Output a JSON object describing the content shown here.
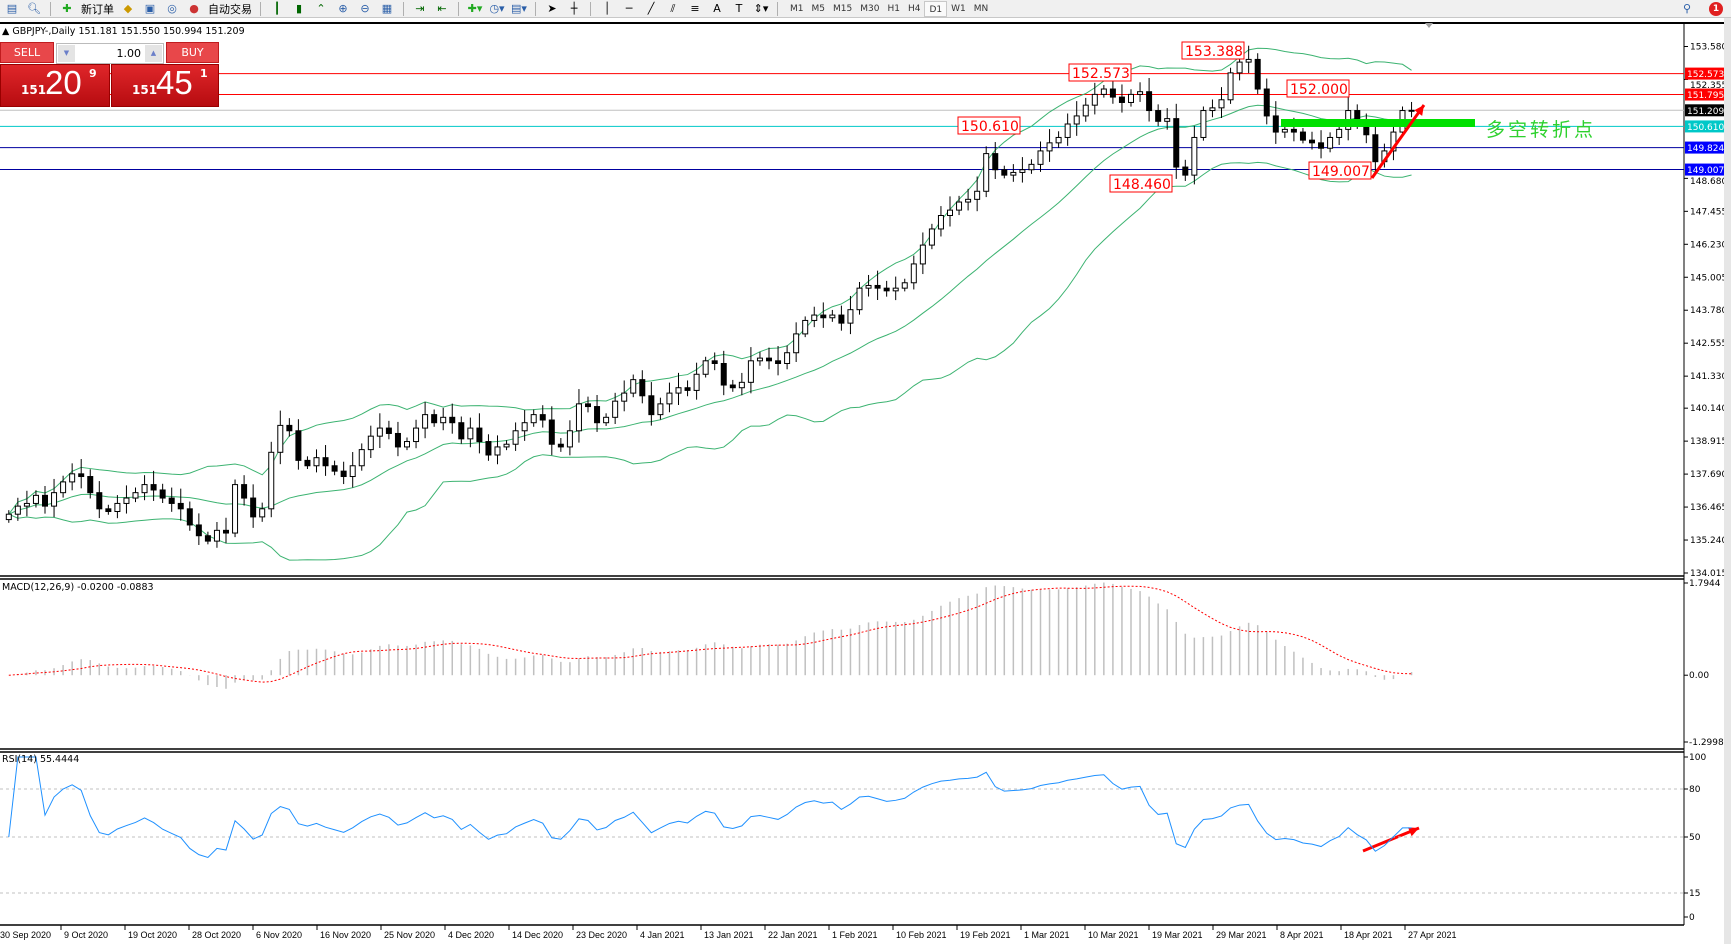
{
  "toolbar": {
    "new_order": "新订单",
    "auto_trading": "自动交易",
    "timeframes": [
      "M1",
      "M5",
      "M15",
      "M30",
      "H1",
      "H4",
      "D1",
      "W1",
      "MN"
    ],
    "active_timeframe": "D1",
    "notification_count": "1"
  },
  "chart": {
    "title": "GBPJPY-,Daily  151.181 151.550 150.994 151.209",
    "one_click": {
      "sell_label": "SELL",
      "buy_label": "BUY",
      "lots": "1.00",
      "sell_big": "151",
      "sell_main": "20",
      "sell_sup": "9",
      "buy_big": "151",
      "buy_main": "45",
      "buy_sup": "1"
    },
    "price_ticks": [
      "153.580",
      "152.355",
      "148.680",
      "147.455",
      "146.230",
      "145.005",
      "143.780",
      "142.555",
      "141.330",
      "140.140",
      "138.915",
      "137.690",
      "136.465",
      "135.240",
      "134.015"
    ],
    "price_lines": [
      {
        "value": "152.573",
        "color": "#ff0000",
        "text_color": "#ffffff"
      },
      {
        "value": "151.795",
        "color": "#ff0000",
        "text_color": "#ffffff"
      },
      {
        "value": "151.209",
        "color": "#c0c0c0",
        "label_bg": "#000000",
        "text_color": "#ffffff"
      },
      {
        "value": "150.610",
        "color": "#00c8c8",
        "text_color": "#ffffff"
      },
      {
        "value": "149.824",
        "color": "#0000a0",
        "label_bg": "#0000ff",
        "text_color": "#ffffff"
      },
      {
        "value": "149.007",
        "color": "#0000a0",
        "label_bg": "#0000ff",
        "text_color": "#ffffff"
      }
    ],
    "annotations": [
      "153.388",
      "152.573",
      "152.000",
      "150.610",
      "148.460",
      "149.007"
    ],
    "pivot_label": "多空转折点",
    "colors": {
      "bands": "#3cb371",
      "pivot": "#00e000",
      "arrow": "#ff0000",
      "annotation": "#ff0000"
    }
  },
  "macd": {
    "title": "MACD(12,26,9) -0.0200 -0.0883",
    "ticks": [
      "1.7944",
      "0.00",
      "-1.2998"
    ]
  },
  "rsi": {
    "title": "RSI(14) 55.4444",
    "ticks": [
      "100",
      "80",
      "50",
      "15",
      "0"
    ]
  },
  "date_labels": [
    "30 Sep 2020",
    "9 Oct 2020",
    "19 Oct 2020",
    "28 Oct 2020",
    "6 Nov 2020",
    "16 Nov 2020",
    "25 Nov 2020",
    "4 Dec 2020",
    "14 Dec 2020",
    "23 Dec 2020",
    "4 Jan 2021",
    "13 Jan 2021",
    "22 Jan 2021",
    "1 Feb 2021",
    "10 Feb 2021",
    "19 Feb 2021",
    "1 Mar 2021",
    "10 Mar 2021",
    "19 Mar 2021",
    "29 Mar 2021",
    "8 Apr 2021",
    "18 Apr 2021",
    "27 Apr 2021"
  ],
  "chart_data": {
    "type": "candlestick",
    "symbol": "GBPJPY-",
    "period": "Daily",
    "ylim": [
      134.015,
      153.58
    ],
    "close": [
      136.2,
      136.5,
      136.6,
      136.9,
      136.5,
      137.0,
      137.4,
      137.7,
      137.6,
      137.0,
      136.4,
      136.3,
      136.6,
      136.8,
      137.0,
      137.3,
      137.1,
      136.8,
      136.6,
      136.4,
      135.8,
      135.4,
      135.2,
      135.6,
      135.5,
      137.3,
      136.8,
      136.1,
      136.4,
      138.5,
      139.5,
      139.3,
      138.2,
      138.0,
      138.3,
      138.0,
      137.8,
      137.6,
      138.0,
      138.6,
      139.1,
      139.4,
      139.2,
      138.7,
      138.9,
      139.4,
      139.9,
      139.6,
      139.8,
      139.6,
      139.0,
      139.4,
      138.9,
      138.4,
      138.7,
      138.8,
      139.3,
      139.6,
      139.9,
      139.7,
      138.8,
      138.7,
      139.3,
      140.3,
      140.2,
      139.6,
      139.8,
      140.4,
      140.7,
      141.2,
      140.6,
      139.9,
      140.3,
      140.7,
      140.9,
      140.8,
      141.4,
      141.9,
      141.8,
      141.0,
      140.9,
      141.1,
      141.9,
      142.0,
      141.9,
      141.8,
      142.2,
      142.9,
      143.4,
      143.6,
      143.5,
      143.6,
      143.3,
      143.8,
      144.6,
      144.7,
      144.6,
      144.5,
      144.6,
      144.8,
      145.5,
      146.2,
      146.8,
      147.3,
      147.5,
      147.8,
      147.9,
      148.2,
      149.6,
      149.0,
      148.8,
      148.9,
      149.0,
      149.2,
      149.7,
      150.0,
      150.2,
      150.7,
      151.0,
      151.4,
      151.8,
      152.0,
      151.7,
      151.5,
      151.8,
      151.9,
      151.2,
      150.8,
      150.9,
      149.1,
      148.8,
      150.2,
      151.2,
      151.3,
      151.6,
      152.6,
      153.0,
      153.1,
      152.0,
      151.0,
      150.4,
      150.5,
      150.4,
      150.1,
      150.0,
      149.8,
      150.2,
      150.5,
      151.2,
      150.7,
      150.3,
      149.3,
      149.7,
      150.4,
      151.2,
      151.209
    ],
    "indicators": [
      "Bollinger Bands(20,2)",
      "MACD(12,26,9)",
      "RSI(14)"
    ],
    "macd_ylim": [
      -1.2998,
      1.7944
    ],
    "rsi_ylim": [
      0,
      100
    ],
    "rsi_levels": [
      80,
      50,
      15
    ]
  }
}
